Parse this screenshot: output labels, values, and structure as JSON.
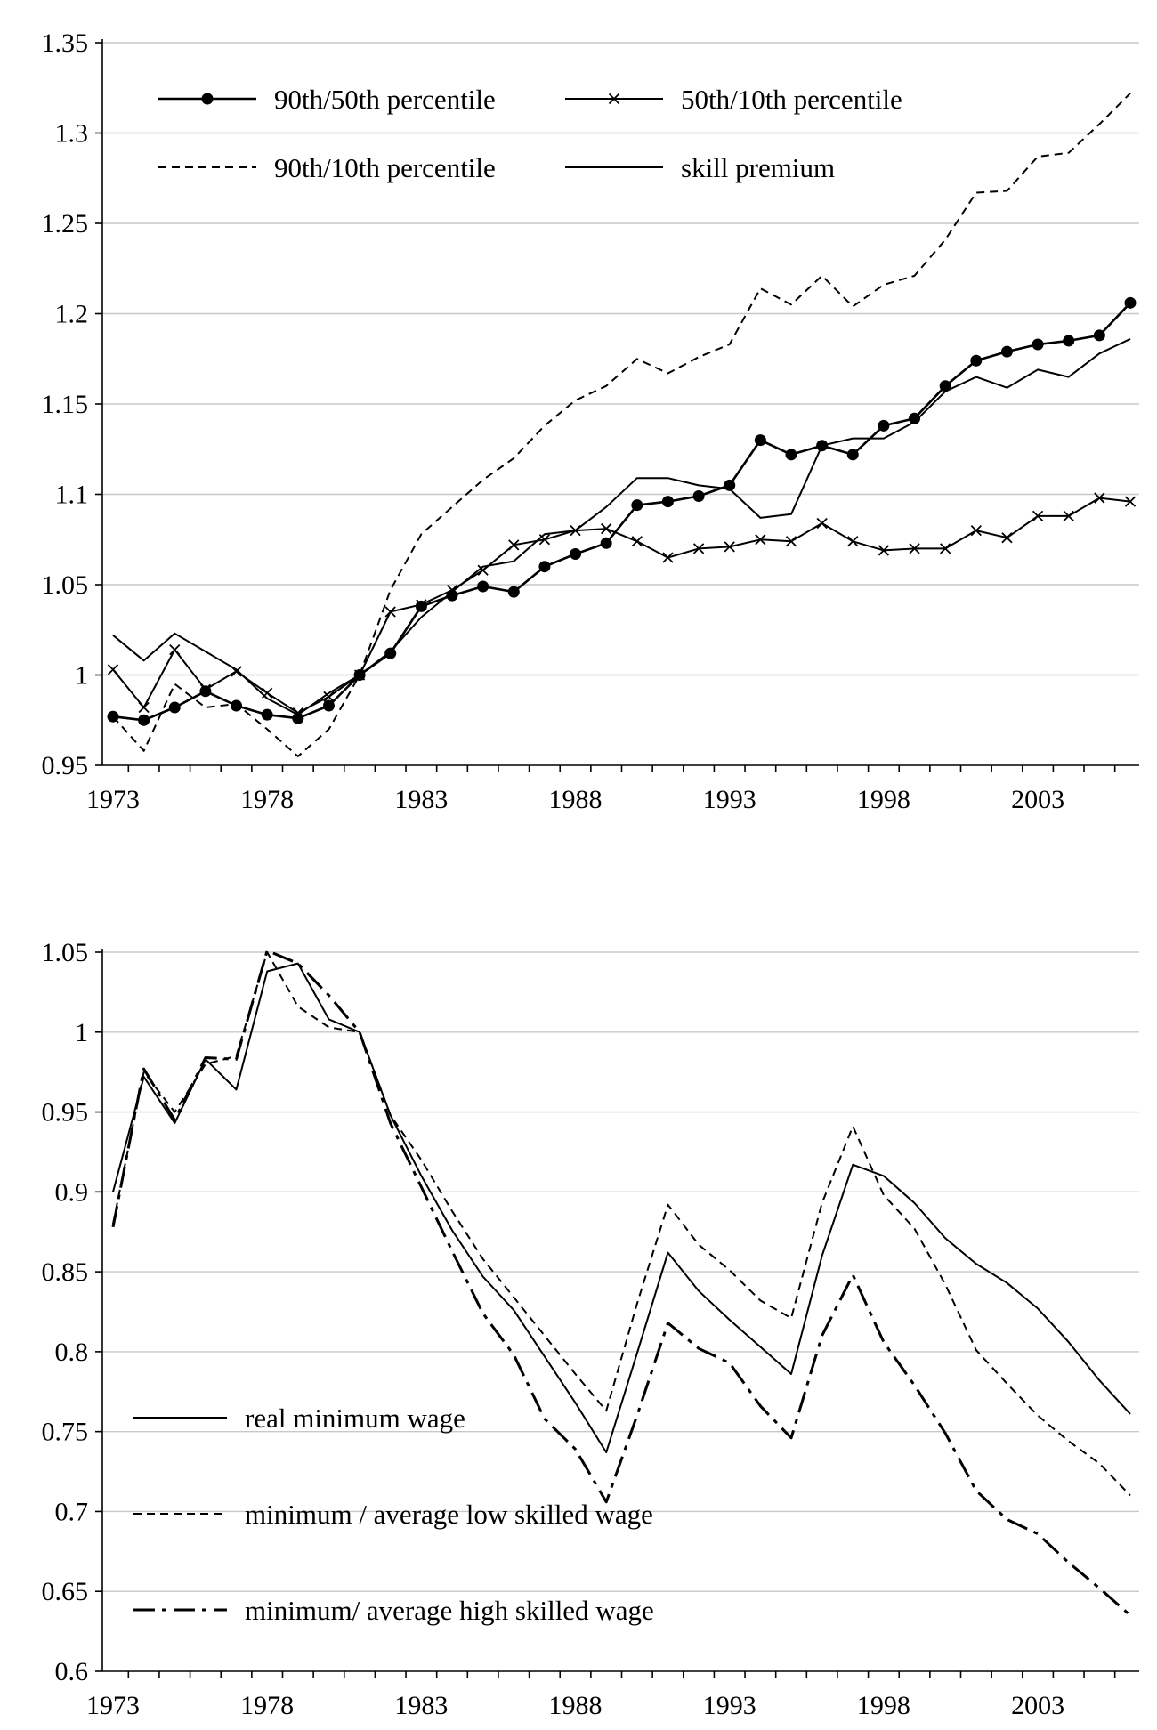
{
  "charts": [
    {
      "type": "line",
      "title": "",
      "xlabel": "",
      "ylabel": "",
      "x_tick_labels": [
        "1973",
        "1978",
        "1983",
        "1988",
        "1993",
        "1998",
        "2003"
      ],
      "y_tick_labels": [
        "0.95",
        "1",
        "1.05",
        "1.1",
        "1.15",
        "1.2",
        "1.25",
        "1.3",
        "1.35"
      ],
      "ylim": [
        0.95,
        1.35
      ],
      "grid": "horizontal",
      "legend_position": "top-left",
      "colors": {
        "lines": "#000000",
        "grid": "#c8c8c8"
      },
      "x": [
        1973,
        1974,
        1975,
        1976,
        1977,
        1978,
        1979,
        1980,
        1981,
        1982,
        1983,
        1984,
        1985,
        1986,
        1987,
        1988,
        1989,
        1990,
        1991,
        1992,
        1993,
        1994,
        1995,
        1996,
        1997,
        1998,
        1999,
        2000,
        2001,
        2002,
        2003,
        2004,
        2005,
        2006
      ],
      "series": [
        {
          "name": "90th/50th percentile",
          "style": "solid-dot",
          "values": [
            0.977,
            0.975,
            0.982,
            0.991,
            0.983,
            0.978,
            0.976,
            0.983,
            1.0,
            1.012,
            1.038,
            1.044,
            1.049,
            1.046,
            1.06,
            1.067,
            1.073,
            1.094,
            1.096,
            1.099,
            1.105,
            1.13,
            1.122,
            1.127,
            1.122,
            1.138,
            1.142,
            1.16,
            1.174,
            1.179,
            1.183,
            1.185,
            1.188,
            1.206
          ]
        },
        {
          "name": "50th/10th percentile",
          "style": "solid-x",
          "values": [
            1.003,
            0.982,
            1.014,
            0.992,
            1.002,
            0.99,
            0.979,
            0.988,
            1.0,
            1.035,
            1.039,
            1.047,
            1.058,
            1.072,
            1.075,
            1.08,
            1.081,
            1.074,
            1.065,
            1.07,
            1.071,
            1.075,
            1.074,
            1.084,
            1.074,
            1.069,
            1.07,
            1.07,
            1.08,
            1.076,
            1.088,
            1.088,
            1.098,
            1.096
          ]
        },
        {
          "name": "90th/10th percentile",
          "style": "dashed",
          "values": [
            0.977,
            0.958,
            0.995,
            0.982,
            0.984,
            0.97,
            0.955,
            0.97,
            1.0,
            1.047,
            1.078,
            1.093,
            1.108,
            1.12,
            1.138,
            1.152,
            1.16,
            1.175,
            1.167,
            1.176,
            1.183,
            1.214,
            1.205,
            1.221,
            1.204,
            1.216,
            1.221,
            1.241,
            1.267,
            1.268,
            1.287,
            1.289,
            1.305,
            1.322
          ]
        },
        {
          "name": "skill premium",
          "style": "solid",
          "values": [
            1.022,
            1.008,
            1.023,
            1.013,
            1.003,
            0.987,
            0.978,
            0.99,
            1.0,
            1.013,
            1.032,
            1.046,
            1.06,
            1.063,
            1.078,
            1.08,
            1.093,
            1.109,
            1.109,
            1.105,
            1.103,
            1.087,
            1.089,
            1.127,
            1.131,
            1.131,
            1.14,
            1.157,
            1.165,
            1.159,
            1.169,
            1.165,
            1.178,
            1.186
          ]
        }
      ]
    },
    {
      "type": "line",
      "title": "",
      "xlabel": "",
      "ylabel": "",
      "x_tick_labels": [
        "1973",
        "1978",
        "1983",
        "1988",
        "1993",
        "1998",
        "2003"
      ],
      "y_tick_labels": [
        "0.6",
        "0.65",
        "0.7",
        "0.75",
        "0.8",
        "0.85",
        "0.9",
        "0.95",
        "1",
        "1.05"
      ],
      "ylim": [
        0.6,
        1.05
      ],
      "grid": "horizontal",
      "legend_position": "bottom-left",
      "colors": {
        "lines": "#000000",
        "grid": "#c8c8c8"
      },
      "x": [
        1973,
        1974,
        1975,
        1976,
        1977,
        1978,
        1979,
        1980,
        1981,
        1982,
        1983,
        1984,
        1985,
        1986,
        1987,
        1988,
        1989,
        1990,
        1991,
        1992,
        1993,
        1994,
        1995,
        1996,
        1997,
        1998,
        1999,
        2000,
        2001,
        2002,
        2003,
        2004,
        2005,
        2006
      ],
      "series": [
        {
          "name": "real minimum wage",
          "style": "solid",
          "values": [
            0.9,
            0.972,
            0.943,
            0.983,
            0.964,
            1.038,
            1.043,
            1.008,
            1.0,
            0.948,
            0.91,
            0.876,
            0.847,
            0.826,
            0.797,
            0.768,
            0.737,
            0.799,
            0.862,
            0.838,
            0.82,
            0.803,
            0.786,
            0.86,
            0.917,
            0.91,
            0.893,
            0.871,
            0.855,
            0.843,
            0.827,
            0.806,
            0.782,
            0.761
          ]
        },
        {
          "name": "minimum / average low skilled wage",
          "style": "dashed",
          "values": [
            0.88,
            0.975,
            0.95,
            0.98,
            0.985,
            1.05,
            1.016,
            1.003,
            1.0,
            0.948,
            0.92,
            0.888,
            0.858,
            0.834,
            0.81,
            0.786,
            0.763,
            0.83,
            0.892,
            0.867,
            0.851,
            0.832,
            0.821,
            0.893,
            0.941,
            0.898,
            0.877,
            0.842,
            0.801,
            0.78,
            0.76,
            0.744,
            0.73,
            0.71
          ]
        },
        {
          "name": "minimum/ average high skilled wage",
          "style": "dashdot",
          "values": [
            0.878,
            0.977,
            0.945,
            0.984,
            0.983,
            1.051,
            1.043,
            1.023,
            1.0,
            0.943,
            0.903,
            0.863,
            0.824,
            0.798,
            0.758,
            0.739,
            0.706,
            0.76,
            0.818,
            0.802,
            0.793,
            0.766,
            0.746,
            0.81,
            0.848,
            0.806,
            0.779,
            0.749,
            0.713,
            0.695,
            0.686,
            0.668,
            0.652,
            0.635
          ]
        }
      ]
    }
  ]
}
